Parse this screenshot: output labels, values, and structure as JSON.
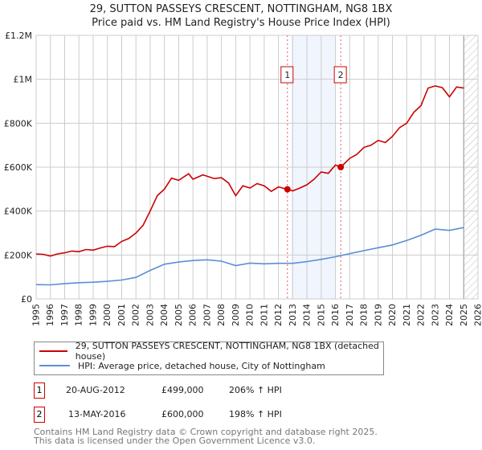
{
  "chart_data": {
    "type": "line",
    "title": "29, SUTTON PASSEYS CRESCENT, NOTTINGHAM, NG8 1BX",
    "subtitle": "Price paid vs. HM Land Registry's House Price Index (HPI)",
    "xlim": [
      1995,
      2026
    ],
    "ylim": [
      0,
      1200000
    ],
    "x_ticks": [
      "1995",
      "1996",
      "1997",
      "1998",
      "1999",
      "2000",
      "2001",
      "2002",
      "2003",
      "2004",
      "2005",
      "2006",
      "2007",
      "2008",
      "2009",
      "2010",
      "2011",
      "2012",
      "2013",
      "2014",
      "2015",
      "2016",
      "2017",
      "2018",
      "2019",
      "2020",
      "2021",
      "2022",
      "2023",
      "2024",
      "2025",
      "2026"
    ],
    "y_ticks": [
      {
        "v": 0,
        "label": "£0"
      },
      {
        "v": 200000,
        "label": "£200K"
      },
      {
        "v": 400000,
        "label": "£400K"
      },
      {
        "v": 600000,
        "label": "£600K"
      },
      {
        "v": 800000,
        "label": "£800K"
      },
      {
        "v": 1000000,
        "label": "£1M"
      },
      {
        "v": 1200000,
        "label": "£1.2M"
      }
    ],
    "grid": true,
    "shaded_range": [
      2012.9,
      2016.0
    ],
    "forecast_hatch_from": 2025.0,
    "series": [
      {
        "name": "29, SUTTON PASSEYS CRESCENT, NOTTINGHAM, NG8 1BX (detached house)",
        "color": "#cc0000",
        "x": [
          1995,
          1995.5,
          1996,
          1996.5,
          1997,
          1997.5,
          1998,
          1998.5,
          1999,
          1999.5,
          2000,
          2000.5,
          2001,
          2001.5,
          2002,
          2002.5,
          2003,
          2003.5,
          2004,
          2004.5,
          2005,
          2005.7,
          2006,
          2006.7,
          2007.5,
          2008,
          2008.5,
          2009,
          2009.5,
          2010,
          2010.5,
          2011,
          2011.5,
          2012,
          2012.63,
          2013,
          2013.5,
          2014,
          2014.5,
          2015,
          2015.5,
          2016,
          2016.37,
          2017,
          2017.5,
          2018,
          2018.5,
          2019,
          2019.5,
          2020,
          2020.5,
          2021,
          2021.5,
          2022,
          2022.5,
          2023,
          2023.5,
          2024,
          2024.5,
          2025
        ],
        "y": [
          205000,
          203000,
          195000,
          205000,
          210000,
          218000,
          215000,
          225000,
          222000,
          232000,
          240000,
          238000,
          262000,
          275000,
          300000,
          335000,
          400000,
          470000,
          500000,
          550000,
          540000,
          570000,
          545000,
          565000,
          548000,
          552000,
          528000,
          470000,
          515000,
          505000,
          525000,
          515000,
          490000,
          510000,
          499000,
          492000,
          505000,
          520000,
          545000,
          578000,
          572000,
          610000,
          600000,
          640000,
          658000,
          690000,
          700000,
          722000,
          712000,
          740000,
          780000,
          800000,
          850000,
          880000,
          960000,
          970000,
          962000,
          920000,
          965000,
          960000
        ]
      },
      {
        "name": "HPI: Average price, detached house, City of Nottingham",
        "color": "#5b8fd4",
        "x": [
          1995,
          1996,
          1997,
          1998,
          1999,
          2000,
          2001,
          2002,
          2003,
          2004,
          2005,
          2006,
          2007,
          2008,
          2009,
          2010,
          2011,
          2012,
          2013,
          2014,
          2015,
          2016,
          2017,
          2018,
          2019,
          2020,
          2021,
          2022,
          2023,
          2024,
          2025
        ],
        "y": [
          65000,
          64000,
          70000,
          74000,
          76000,
          80000,
          86000,
          98000,
          130000,
          158000,
          168000,
          175000,
          178000,
          172000,
          152000,
          163000,
          160000,
          162000,
          162000,
          170000,
          180000,
          192000,
          206000,
          220000,
          233000,
          246000,
          266000,
          290000,
          318000,
          312000,
          325000
        ]
      }
    ],
    "sales": [
      {
        "label": "1",
        "x": 2012.63,
        "y": 499000
      },
      {
        "label": "2",
        "x": 2016.37,
        "y": 600000
      }
    ]
  },
  "legend": {
    "property": "29, SUTTON PASSEYS CRESCENT, NOTTINGHAM, NG8 1BX (detached house)",
    "hpi": "HPI: Average price, detached house, City of Nottingham"
  },
  "transactions": [
    {
      "num": "1",
      "date": "20-AUG-2012",
      "price": "£499,000",
      "hpi": "206% ↑ HPI"
    },
    {
      "num": "2",
      "date": "13-MAY-2016",
      "price": "£600,000",
      "hpi": "198% ↑ HPI"
    }
  ],
  "footer": {
    "line1": "Contains HM Land Registry data © Crown copyright and database right 2025.",
    "line2": "This data is licensed under the Open Government Licence v3.0."
  }
}
